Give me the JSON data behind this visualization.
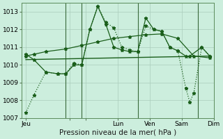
{
  "background_color": "#cceedd",
  "grid_color": "#aaccbb",
  "line_color": "#1a5e1a",
  "xlabel": "Pression niveau de la mer( hPa )",
  "ylim": [
    1007,
    1013.5
  ],
  "yticks": [
    1007,
    1008,
    1009,
    1010,
    1011,
    1012,
    1013
  ],
  "xlim": [
    0,
    24
  ],
  "xtick_positions": [
    0.5,
    6,
    8,
    12,
    16,
    20,
    24
  ],
  "xtick_labels": [
    "Jeu",
    "",
    "",
    "Lun",
    "Ven",
    "Sam",
    "Dim"
  ],
  "vline_positions": [
    5.5,
    7.5,
    14.5,
    22.0
  ],
  "series_jagged": {
    "x": [
      0.5,
      1.5,
      3.0,
      4.5,
      5.5,
      6.5,
      7.5,
      8.5,
      9.5,
      10.5,
      11.5,
      12.5,
      13.5,
      14.5,
      15.5,
      16.5,
      17.5,
      18.5,
      19.5,
      20.5,
      21.0,
      21.5,
      22.5,
      23.5
    ],
    "y": [
      1007.3,
      1008.3,
      1009.6,
      1009.5,
      1009.5,
      1010.1,
      1010.0,
      1012.0,
      1013.3,
      1012.4,
      1012.1,
      1011.0,
      1010.85,
      1010.75,
      1012.2,
      1012.0,
      1011.9,
      1011.0,
      1010.8,
      1008.7,
      1007.9,
      1008.4,
      1011.0,
      1010.5
    ]
  },
  "series_smooth": {
    "x": [
      0.5,
      1.5,
      3.0,
      5.5,
      7.5,
      9.5,
      11.5,
      13.5,
      15.5,
      17.5,
      19.5,
      21.5,
      23.5
    ],
    "y": [
      1010.5,
      1010.6,
      1010.75,
      1010.9,
      1011.1,
      1011.3,
      1011.5,
      1011.6,
      1011.7,
      1011.75,
      1011.5,
      1010.5,
      1010.4
    ]
  },
  "series_flat": {
    "x": [
      0.5,
      23.5
    ],
    "y": [
      1010.3,
      1010.5
    ]
  },
  "series_volatile": {
    "x": [
      0.5,
      1.5,
      3.0,
      4.5,
      5.5,
      6.5,
      7.5,
      8.5,
      9.5,
      10.5,
      11.5,
      12.5,
      13.5,
      14.5,
      15.5,
      16.5,
      17.5,
      18.5,
      19.5,
      20.5,
      21.0,
      22.5,
      23.5
    ],
    "y": [
      1010.6,
      1010.3,
      1009.6,
      1009.5,
      1009.5,
      1010.0,
      1010.0,
      1012.0,
      1013.3,
      1012.3,
      1011.0,
      1010.85,
      1010.75,
      1010.75,
      1012.65,
      1012.0,
      1011.9,
      1011.0,
      1010.8,
      1010.5,
      1010.5,
      1011.0,
      1010.5
    ]
  }
}
